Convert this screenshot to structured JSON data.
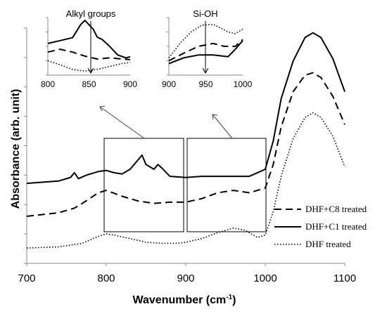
{
  "chart_data": {
    "type": "line",
    "xlabel": "Wavenumber (cm",
    "xlabel_sup": "-1",
    "xlabel_end": ")",
    "ylabel": "Absorbance (arb. unit)",
    "xlim": [
      700,
      1100
    ],
    "xticks": [
      "700",
      "800",
      "900",
      "1000",
      "1100"
    ],
    "ylim": [
      0,
      1
    ],
    "yticks_labeled": false,
    "legend_position": "bottom-right",
    "series": [
      {
        "name": "DHF+C8 treated",
        "style": "dashed",
        "x": [
          700,
          740,
          760,
          770,
          790,
          800,
          820,
          840,
          860,
          880,
          900,
          920,
          940,
          960,
          980,
          1000,
          1010,
          1020,
          1035,
          1050,
          1060,
          1070,
          1085,
          1100
        ],
        "y": [
          0.2,
          0.215,
          0.235,
          0.255,
          0.3,
          0.31,
          0.285,
          0.265,
          0.255,
          0.26,
          0.26,
          0.275,
          0.3,
          0.31,
          0.3,
          0.32,
          0.42,
          0.58,
          0.73,
          0.8,
          0.81,
          0.79,
          0.71,
          0.59
        ]
      },
      {
        "name": "DHF+C1 treated",
        "style": "solid",
        "x": [
          700,
          740,
          755,
          760,
          765,
          775,
          790,
          800,
          810,
          820,
          830,
          840,
          845,
          850,
          860,
          865,
          870,
          880,
          900,
          920,
          940,
          960,
          980,
          1000,
          1010,
          1020,
          1035,
          1050,
          1060,
          1070,
          1085,
          1100
        ],
        "y": [
          0.34,
          0.35,
          0.365,
          0.385,
          0.36,
          0.375,
          0.39,
          0.395,
          0.385,
          0.38,
          0.4,
          0.44,
          0.46,
          0.42,
          0.4,
          0.42,
          0.405,
          0.37,
          0.365,
          0.37,
          0.37,
          0.37,
          0.37,
          0.4,
          0.52,
          0.7,
          0.86,
          0.96,
          0.98,
          0.96,
          0.87,
          0.73
        ]
      },
      {
        "name": "DHF treated",
        "style": "dotted",
        "x": [
          700,
          740,
          770,
          790,
          800,
          810,
          830,
          850,
          870,
          890,
          900,
          920,
          940,
          960,
          975,
          990,
          1000,
          1010,
          1020,
          1035,
          1050,
          1060,
          1070,
          1085,
          1100
        ],
        "y": [
          0.065,
          0.07,
          0.085,
          0.115,
          0.125,
          0.12,
          0.105,
          0.09,
          0.085,
          0.085,
          0.09,
          0.105,
          0.13,
          0.15,
          0.14,
          0.11,
          0.12,
          0.22,
          0.37,
          0.53,
          0.62,
          0.64,
          0.62,
          0.54,
          0.41
        ]
      }
    ],
    "insets": [
      {
        "title": "Alkyl groups",
        "xlim": [
          800,
          900
        ],
        "xticks": [
          "800",
          "850",
          "900"
        ],
        "series": [
          {
            "name": "DHF+C1 treated",
            "style": "solid",
            "x": [
              800,
              815,
              830,
              840,
              845,
              855,
              860,
              866,
              875,
              885,
              895,
              900
            ],
            "y": [
              0.55,
              0.6,
              0.65,
              0.88,
              0.95,
              0.8,
              0.66,
              0.62,
              0.5,
              0.35,
              0.3,
              0.32
            ]
          },
          {
            "name": "DHF+C8 treated",
            "style": "dashed",
            "x": [
              800,
              815,
              830,
              845,
              860,
              875,
              890,
              900
            ],
            "y": [
              0.4,
              0.45,
              0.4,
              0.33,
              0.28,
              0.3,
              0.28,
              0.27
            ]
          },
          {
            "name": "DHF treated",
            "style": "dotted",
            "x": [
              800,
              815,
              830,
              845,
              860,
              875,
              890,
              900
            ],
            "y": [
              0.25,
              0.18,
              0.1,
              0.07,
              0.1,
              0.15,
              0.2,
              0.22
            ]
          }
        ]
      },
      {
        "title": "Si-OH",
        "xlim": [
          900,
          1000
        ],
        "xticks": [
          "900",
          "950",
          "1000"
        ],
        "series": [
          {
            "name": "DHF treated",
            "style": "dotted",
            "x": [
              900,
              915,
              930,
              945,
              960,
              970,
              980,
              990,
              1000
            ],
            "y": [
              0.3,
              0.55,
              0.75,
              0.87,
              0.88,
              0.82,
              0.75,
              0.72,
              0.8
            ]
          },
          {
            "name": "DHF+C8 treated",
            "style": "dashed",
            "x": [
              900,
              920,
              940,
              960,
              975,
              990,
              1000
            ],
            "y": [
              0.25,
              0.38,
              0.5,
              0.55,
              0.5,
              0.5,
              0.62
            ]
          },
          {
            "name": "DHF+C1 treated",
            "style": "solid",
            "x": [
              900,
              920,
              940,
              960,
              980,
              990,
              1000
            ],
            "y": [
              0.2,
              0.3,
              0.35,
              0.35,
              0.32,
              0.45,
              0.6
            ]
          }
        ]
      }
    ]
  }
}
